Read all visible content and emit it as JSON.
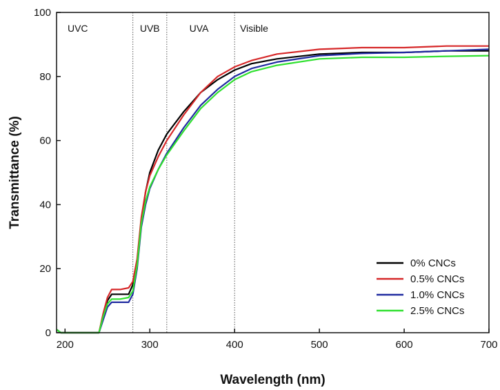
{
  "chart_data": {
    "type": "line",
    "xlabel": "Wavelength (nm)",
    "ylabel": "Transmittance (%)",
    "xlim": [
      190,
      700
    ],
    "ylim": [
      0,
      100
    ],
    "xticks": [
      200,
      300,
      400,
      500,
      600,
      700
    ],
    "yticks": [
      0,
      20,
      40,
      60,
      80,
      100
    ],
    "grid": false,
    "legend_position": "bottom-right",
    "regions": [
      {
        "label": "UVC",
        "x": 215
      },
      {
        "label": "UVB",
        "x": 300
      },
      {
        "label": "UVA",
        "x": 358
      },
      {
        "label": "Visible",
        "x": 423
      }
    ],
    "dividers": [
      280,
      320,
      400
    ],
    "series": [
      {
        "name": "0% CNCs",
        "color": "#000000",
        "points": [
          [
            190,
            1
          ],
          [
            195,
            0
          ],
          [
            240,
            0
          ],
          [
            245,
            5
          ],
          [
            250,
            10
          ],
          [
            255,
            12
          ],
          [
            265,
            12
          ],
          [
            275,
            12
          ],
          [
            280,
            15
          ],
          [
            285,
            22
          ],
          [
            290,
            35
          ],
          [
            295,
            44
          ],
          [
            300,
            50
          ],
          [
            310,
            57
          ],
          [
            320,
            62
          ],
          [
            340,
            69
          ],
          [
            360,
            75
          ],
          [
            380,
            79
          ],
          [
            400,
            82
          ],
          [
            420,
            84
          ],
          [
            450,
            85.5
          ],
          [
            500,
            87
          ],
          [
            550,
            87.5
          ],
          [
            600,
            87.5
          ],
          [
            650,
            88
          ],
          [
            700,
            88
          ]
        ]
      },
      {
        "name": "0.5% CNCs",
        "color": "#d62728",
        "points": [
          [
            190,
            1
          ],
          [
            195,
            0
          ],
          [
            240,
            0
          ],
          [
            245,
            6
          ],
          [
            250,
            11
          ],
          [
            255,
            13.5
          ],
          [
            265,
            13.5
          ],
          [
            275,
            14
          ],
          [
            280,
            16
          ],
          [
            285,
            23
          ],
          [
            290,
            36
          ],
          [
            295,
            44
          ],
          [
            300,
            49
          ],
          [
            310,
            55
          ],
          [
            320,
            60
          ],
          [
            340,
            68
          ],
          [
            360,
            75
          ],
          [
            380,
            80
          ],
          [
            400,
            83
          ],
          [
            420,
            85
          ],
          [
            450,
            87
          ],
          [
            500,
            88.5
          ],
          [
            550,
            89
          ],
          [
            600,
            89
          ],
          [
            650,
            89.5
          ],
          [
            700,
            89.5
          ]
        ]
      },
      {
        "name": "1.0% CNCs",
        "color": "#1f2aa0",
        "points": [
          [
            190,
            1
          ],
          [
            195,
            0
          ],
          [
            240,
            0
          ],
          [
            245,
            4
          ],
          [
            250,
            8
          ],
          [
            255,
            9.5
          ],
          [
            265,
            9.5
          ],
          [
            275,
            9.5
          ],
          [
            280,
            12
          ],
          [
            285,
            20
          ],
          [
            290,
            33
          ],
          [
            295,
            40
          ],
          [
            300,
            45
          ],
          [
            310,
            51
          ],
          [
            320,
            56
          ],
          [
            340,
            64
          ],
          [
            360,
            71
          ],
          [
            380,
            76
          ],
          [
            400,
            80
          ],
          [
            420,
            82.5
          ],
          [
            450,
            84.5
          ],
          [
            500,
            86.5
          ],
          [
            550,
            87.2
          ],
          [
            600,
            87.5
          ],
          [
            650,
            88
          ],
          [
            700,
            88.5
          ]
        ]
      },
      {
        "name": "2.5% CNCs",
        "color": "#2fe02f",
        "points": [
          [
            190,
            1
          ],
          [
            195,
            0
          ],
          [
            240,
            0
          ],
          [
            245,
            5
          ],
          [
            250,
            9
          ],
          [
            255,
            10.5
          ],
          [
            265,
            10.5
          ],
          [
            275,
            11
          ],
          [
            280,
            13
          ],
          [
            285,
            21
          ],
          [
            290,
            34
          ],
          [
            295,
            41
          ],
          [
            300,
            45.5
          ],
          [
            310,
            51
          ],
          [
            320,
            55.5
          ],
          [
            340,
            63
          ],
          [
            360,
            70
          ],
          [
            380,
            75
          ],
          [
            400,
            79
          ],
          [
            420,
            81.5
          ],
          [
            450,
            83.5
          ],
          [
            500,
            85.5
          ],
          [
            550,
            86
          ],
          [
            600,
            86
          ],
          [
            650,
            86.3
          ],
          [
            700,
            86.5
          ]
        ]
      }
    ]
  }
}
